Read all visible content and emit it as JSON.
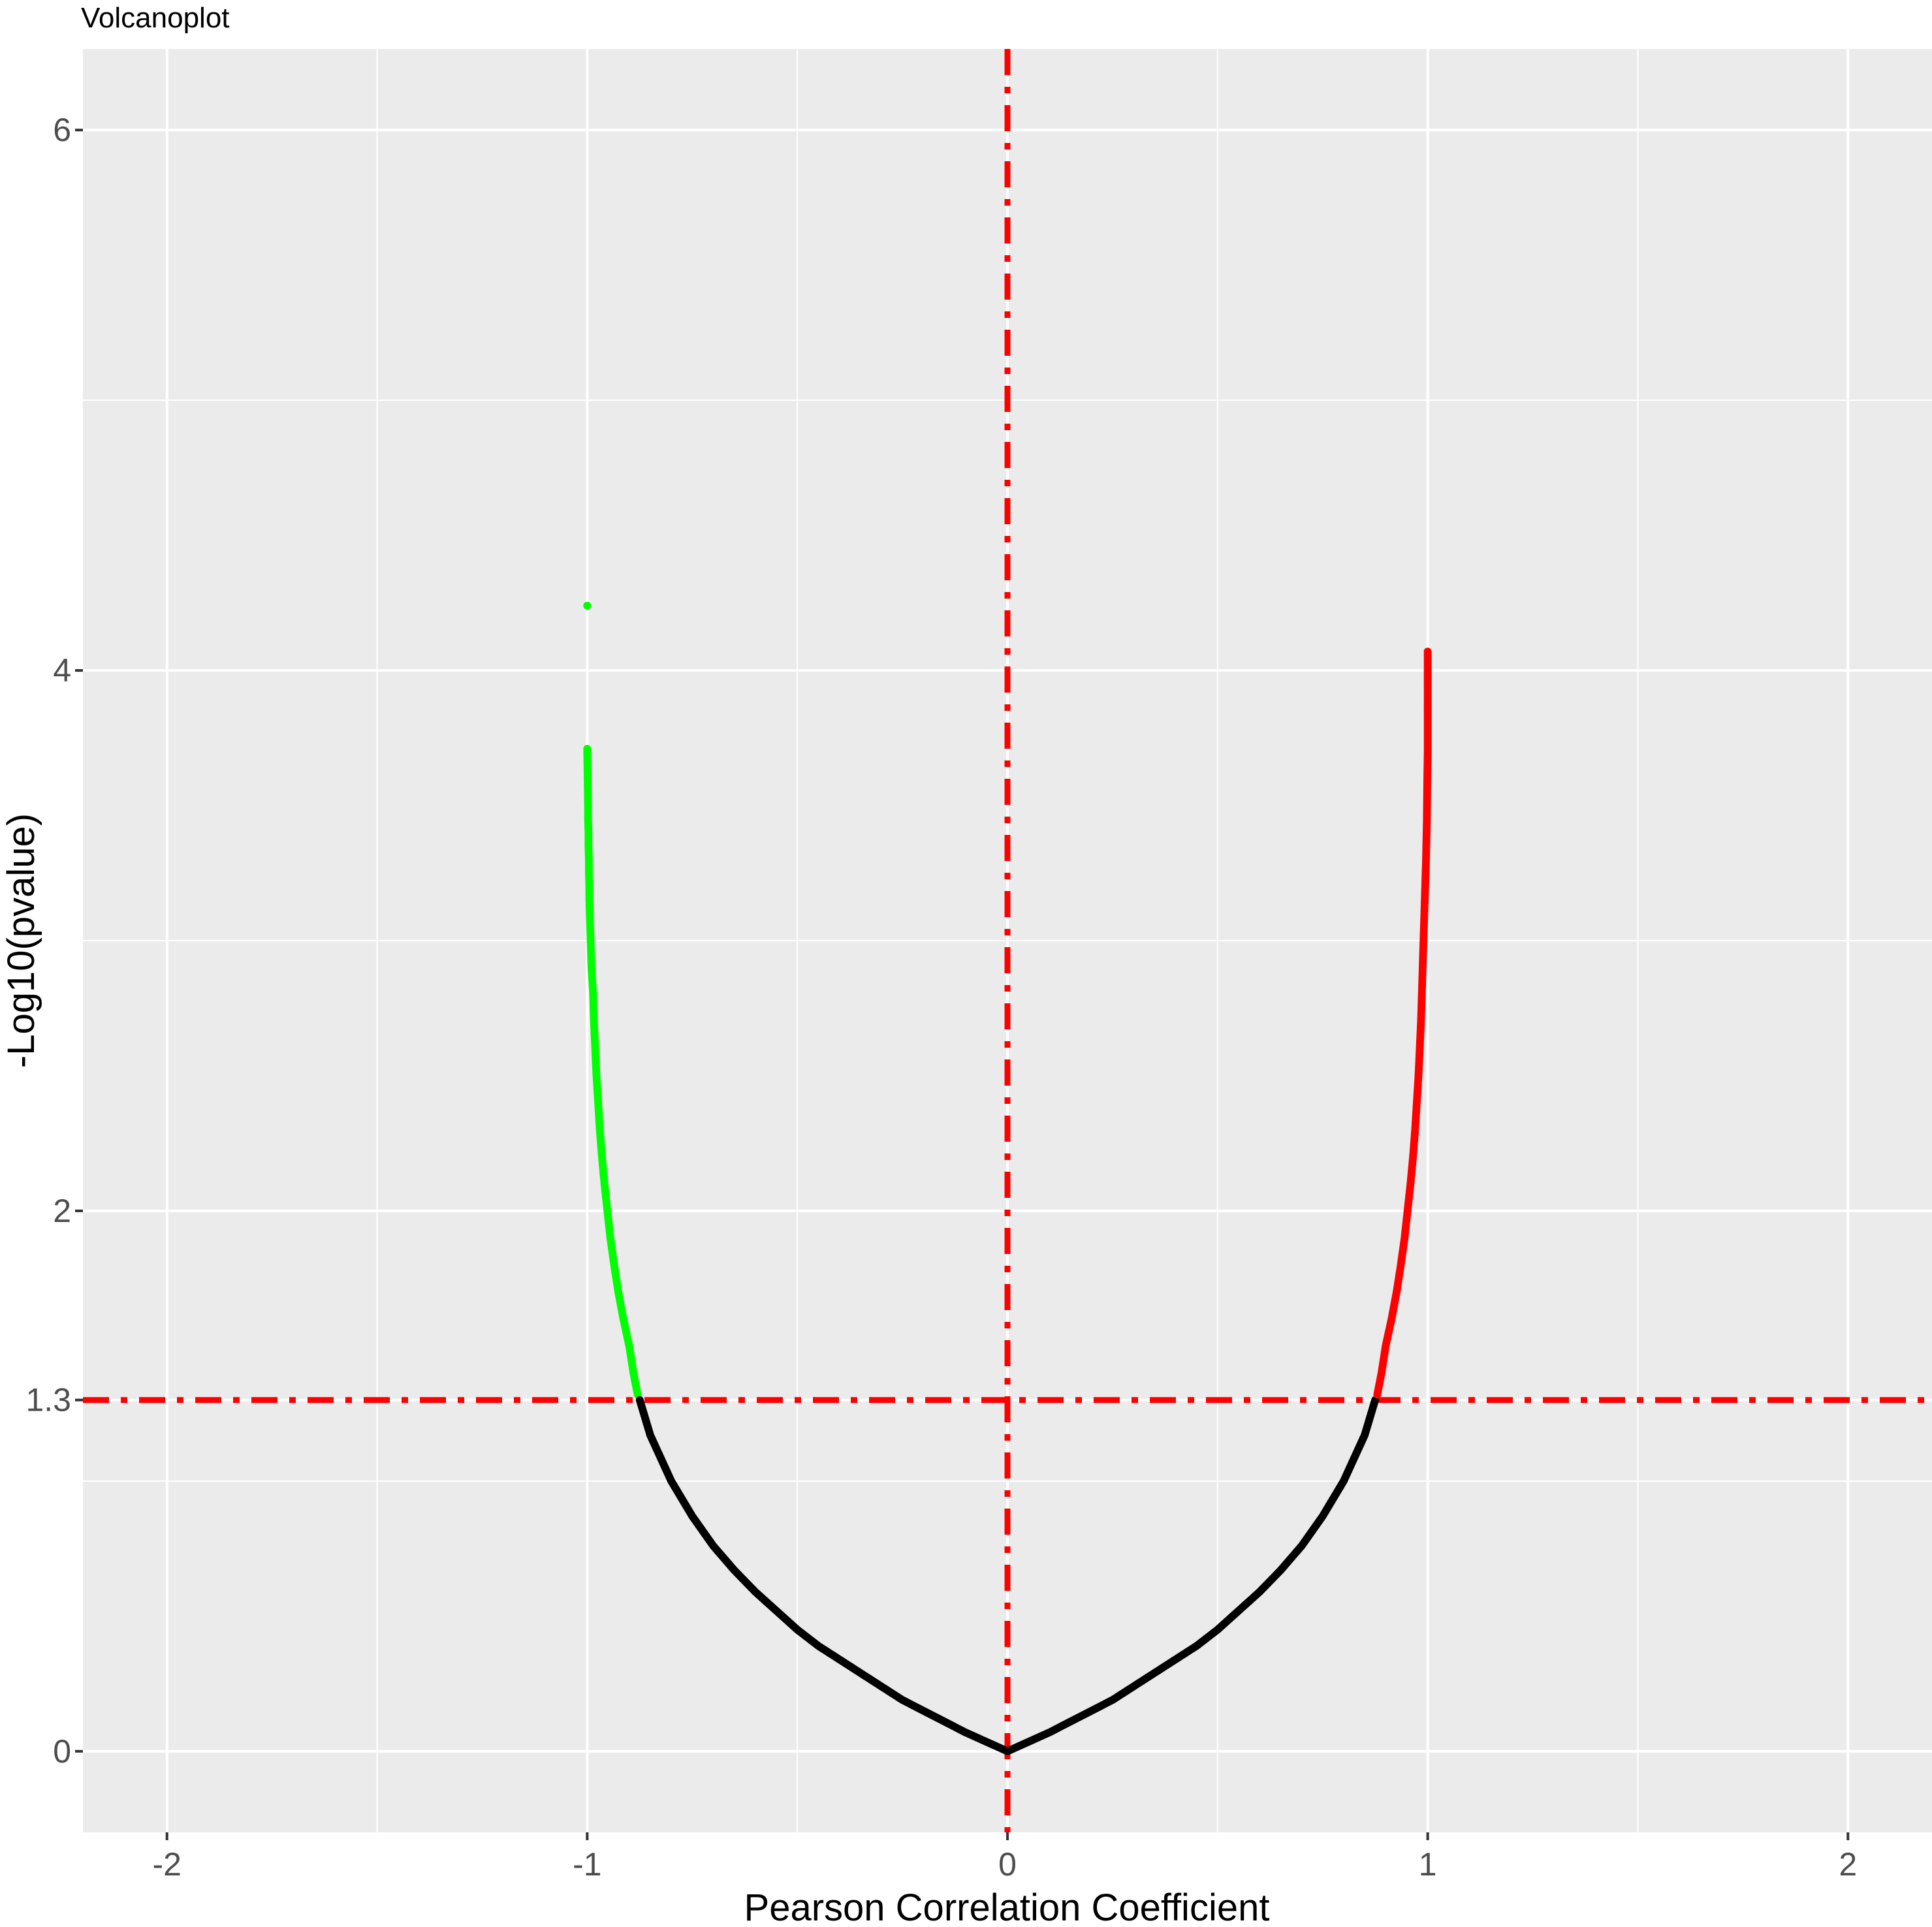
{
  "chart_data": {
    "type": "scatter",
    "title": "Volcanoplot",
    "xlabel": "Pearson Correlation Coefficient",
    "ylabel": "-Log10(pvalue)",
    "xlim": [
      -2.2,
      2.2
    ],
    "ylim": [
      -0.3,
      6.3
    ],
    "x_ticks": [
      -2,
      -1,
      0,
      1,
      2
    ],
    "x_tick_labels": [
      "-2",
      "-1",
      "0",
      "1",
      "2"
    ],
    "y_ticks": [
      0,
      1.3,
      2,
      4,
      6
    ],
    "y_tick_labels": [
      "0",
      "1.3",
      "2",
      "4",
      "6"
    ],
    "grid": true,
    "legend": "none",
    "reference_lines": [
      {
        "orientation": "vertical",
        "value": 0,
        "style": "dotdash",
        "color": "#ff0000"
      },
      {
        "orientation": "horizontal",
        "value": 1.3,
        "style": "dotdash",
        "color": "#ff0000"
      }
    ],
    "colors": {
      "panel_background": "#ebebeb",
      "grid": "#ffffff",
      "negative_significant": "#00ff00",
      "not_significant": "#000000",
      "positive_significant": "#ff0000"
    },
    "series": [
      {
        "group": "negative_significant",
        "color": "#00ff00",
        "points": [
          [
            -1.0,
            4.24
          ],
          [
            -1.0,
            3.71
          ],
          [
            -0.998,
            3.5
          ],
          [
            -0.998,
            3.45
          ],
          [
            -0.997,
            3.4
          ],
          [
            -0.997,
            3.35
          ],
          [
            -0.996,
            3.3
          ],
          [
            -0.996,
            3.25
          ],
          [
            -0.995,
            3.2
          ],
          [
            -0.995,
            3.15
          ],
          [
            -0.994,
            3.1
          ],
          [
            -0.993,
            3.05
          ],
          [
            -0.992,
            3.0
          ],
          [
            -0.991,
            2.95
          ],
          [
            -0.99,
            2.9
          ],
          [
            -0.988,
            2.85
          ],
          [
            -0.986,
            2.8
          ],
          [
            -0.984,
            2.7
          ],
          [
            -0.981,
            2.6
          ],
          [
            -0.978,
            2.5
          ],
          [
            -0.974,
            2.4
          ],
          [
            -0.97,
            2.3
          ],
          [
            -0.965,
            2.2
          ],
          [
            -0.959,
            2.1
          ],
          [
            -0.952,
            2.0
          ],
          [
            -0.945,
            1.9
          ],
          [
            -0.936,
            1.8
          ],
          [
            -0.926,
            1.7
          ],
          [
            -0.914,
            1.6
          ],
          [
            -0.9,
            1.5
          ],
          [
            -0.89,
            1.4
          ],
          [
            -0.88,
            1.32
          ]
        ]
      },
      {
        "group": "not_significant",
        "color": "#000000",
        "points": [
          [
            -0.875,
            1.3
          ],
          [
            -0.85,
            1.17
          ],
          [
            -0.8,
            1.0
          ],
          [
            -0.75,
            0.87
          ],
          [
            -0.7,
            0.76
          ],
          [
            -0.65,
            0.67
          ],
          [
            -0.6,
            0.59
          ],
          [
            -0.55,
            0.52
          ],
          [
            -0.5,
            0.45
          ],
          [
            -0.45,
            0.39
          ],
          [
            -0.4,
            0.34
          ],
          [
            -0.35,
            0.29
          ],
          [
            -0.3,
            0.24
          ],
          [
            -0.25,
            0.19
          ],
          [
            -0.2,
            0.15
          ],
          [
            -0.15,
            0.11
          ],
          [
            -0.1,
            0.07
          ],
          [
            -0.05,
            0.035
          ],
          [
            0.0,
            0.0
          ],
          [
            0.05,
            0.035
          ],
          [
            0.1,
            0.07
          ],
          [
            0.15,
            0.11
          ],
          [
            0.2,
            0.15
          ],
          [
            0.25,
            0.19
          ],
          [
            0.3,
            0.24
          ],
          [
            0.35,
            0.29
          ],
          [
            0.4,
            0.34
          ],
          [
            0.45,
            0.39
          ],
          [
            0.5,
            0.45
          ],
          [
            0.55,
            0.52
          ],
          [
            0.6,
            0.59
          ],
          [
            0.65,
            0.67
          ],
          [
            0.7,
            0.76
          ],
          [
            0.75,
            0.87
          ],
          [
            0.8,
            1.0
          ],
          [
            0.85,
            1.17
          ],
          [
            0.875,
            1.3
          ]
        ]
      },
      {
        "group": "positive_significant",
        "color": "#ff0000",
        "points": [
          [
            0.88,
            1.32
          ],
          [
            0.89,
            1.4
          ],
          [
            0.9,
            1.5
          ],
          [
            0.914,
            1.6
          ],
          [
            0.926,
            1.7
          ],
          [
            0.936,
            1.8
          ],
          [
            0.945,
            1.9
          ],
          [
            0.952,
            2.0
          ],
          [
            0.959,
            2.1
          ],
          [
            0.965,
            2.2
          ],
          [
            0.97,
            2.3
          ],
          [
            0.974,
            2.4
          ],
          [
            0.978,
            2.5
          ],
          [
            0.981,
            2.6
          ],
          [
            0.984,
            2.7
          ],
          [
            0.986,
            2.8
          ],
          [
            0.988,
            2.9
          ],
          [
            0.99,
            3.0
          ],
          [
            0.992,
            3.1
          ],
          [
            0.994,
            3.2
          ],
          [
            0.996,
            3.3
          ],
          [
            0.998,
            3.45
          ],
          [
            0.999,
            3.6
          ],
          [
            1.0,
            3.7
          ],
          [
            1.0,
            3.85
          ],
          [
            1.0,
            4.07
          ]
        ]
      }
    ]
  }
}
